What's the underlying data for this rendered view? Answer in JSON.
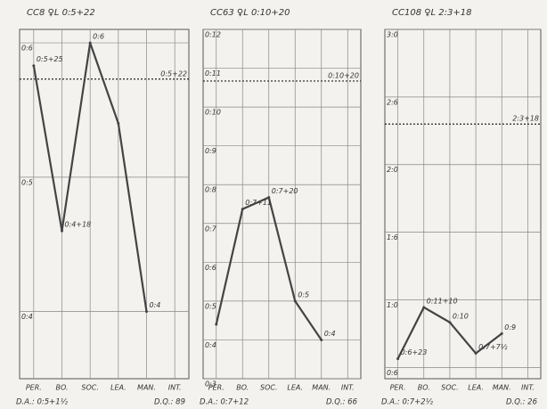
{
  "chart_data": [
    {
      "type": "line",
      "title": "CC8 ♀L 0:5+22",
      "categories": [
        "PER.",
        "BO.",
        "SOC.",
        "LEA.",
        "MAN.",
        "INT."
      ],
      "values": [
        5.83,
        4.6,
        6,
        5.4,
        4,
        null
      ],
      "value_labels": [
        "0:5+25",
        "0:4+18",
        "0:6",
        null,
        "0:4",
        null
      ],
      "ylim": [
        3.5,
        6.1
      ],
      "yticks": [
        {
          "value": 4,
          "label": "0:4"
        },
        {
          "value": 5,
          "label": "0:5"
        },
        {
          "value": 6,
          "label": "0:6"
        }
      ],
      "reference": {
        "value": 5.73,
        "label": "0:5+22"
      },
      "footer": [
        "D.A.: 0:5+1½",
        "D.Q.: 89"
      ],
      "color": "#444444",
      "grid": true
    },
    {
      "type": "line",
      "title": "CC63 ♀L 0:10+20",
      "categories": [
        "PER.",
        "BO.",
        "SOC.",
        "LEA.",
        "MAN.",
        "INT."
      ],
      "values": [
        4.4,
        7.37,
        7.67,
        5,
        4,
        null
      ],
      "value_labels": [
        null,
        "0:7+11",
        "0:7+20",
        "0:5",
        "0:4",
        null
      ],
      "ylim": [
        3,
        12
      ],
      "yticks": [
        {
          "value": 3,
          "label": "0:3"
        },
        {
          "value": 4,
          "label": "0:4"
        },
        {
          "value": 5,
          "label": "0:5"
        },
        {
          "value": 6,
          "label": "0:6"
        },
        {
          "value": 7,
          "label": "0:7"
        },
        {
          "value": 8,
          "label": "0:8"
        },
        {
          "value": 9,
          "label": "0:9"
        },
        {
          "value": 10,
          "label": "0:10"
        },
        {
          "value": 11,
          "label": "0:11"
        },
        {
          "value": 12,
          "label": "0:12"
        }
      ],
      "reference": {
        "value": 10.67,
        "label": "0:10+20"
      },
      "footer": [
        "D.A.: 0:7+12",
        "D.Q.: 66"
      ],
      "color": "#444444",
      "grid": true
    },
    {
      "type": "line",
      "title": "CC108 ♀L 2:3+18",
      "categories": [
        "PER.",
        "BO.",
        "SOC.",
        "LEA.",
        "MAN.",
        "INT."
      ],
      "values": [
        6.77,
        11.33,
        10,
        7.25,
        9,
        null
      ],
      "value_labels": [
        "0:6+23",
        "0:11+10",
        "0:10",
        "0:7+7½",
        "0:9",
        null
      ],
      "ylim": [
        5,
        36
      ],
      "yticks": [
        {
          "value": 6,
          "label": "0:6"
        },
        {
          "value": 12,
          "label": "1:0"
        },
        {
          "value": 18,
          "label": "1:6"
        },
        {
          "value": 24,
          "label": "2:0"
        },
        {
          "value": 30,
          "label": "2:6"
        },
        {
          "value": 36,
          "label": "3:0"
        }
      ],
      "reference": {
        "value": 27.6,
        "label": "2:3+18"
      },
      "footer": [
        "D.A.: 0:7+2½",
        "D.Q.: 26"
      ],
      "color": "#444444",
      "grid": true
    }
  ]
}
